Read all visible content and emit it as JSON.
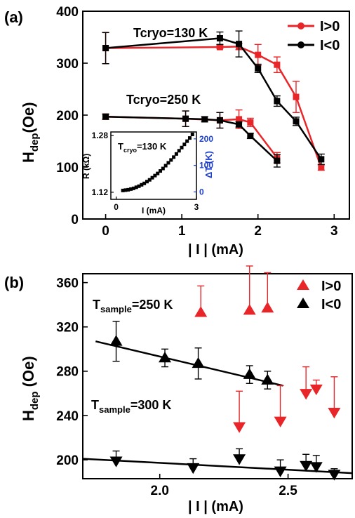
{
  "chart_data": [
    {
      "panel": "(a)",
      "type": "line",
      "xlabel": "| I | (mA)",
      "ylabel": "H_dep (Oe)",
      "xlim": [
        -0.3,
        3.2
      ],
      "ylim": [
        0,
        400
      ],
      "xticks": [
        0,
        1,
        2,
        3
      ],
      "yticks": [
        0,
        100,
        200,
        300,
        400
      ],
      "legend_position": "top-right",
      "annotations": [
        "Tcryo=130 K",
        "Tcryo=250 K"
      ],
      "series": [
        {
          "name": "I>0",
          "color": "#e8262a",
          "marker": "circle-square",
          "group": "130K",
          "x": [
            0,
            1.5,
            1.75,
            2.0,
            2.25,
            2.5,
            2.83
          ],
          "y": [
            329,
            331,
            332,
            316,
            297,
            235,
            99
          ],
          "err": [
            30,
            3,
            6,
            20,
            15,
            30,
            5
          ]
        },
        {
          "name": "I<0",
          "color": "#000000",
          "marker": "circle-square",
          "group": "130K",
          "x": [
            0,
            1.5,
            1.75,
            2.0,
            2.25,
            2.5,
            2.83
          ],
          "y": [
            329,
            348,
            337,
            290,
            227,
            188,
            115
          ],
          "err": [
            30,
            12,
            25,
            8,
            10,
            8,
            10
          ]
        },
        {
          "name": "I>0",
          "color": "#e8262a",
          "marker": "circle-square",
          "group": "250K",
          "x": [
            0,
            1.05,
            1.5,
            1.75,
            1.9,
            2.25
          ],
          "y": [
            197,
            193,
            190,
            192,
            186,
            118
          ],
          "err": [
            5,
            15,
            15,
            18,
            8,
            10
          ]
        },
        {
          "name": "I<0",
          "color": "#000000",
          "marker": "circle-square",
          "group": "250K",
          "x": [
            0,
            1.05,
            1.3,
            1.5,
            1.75,
            1.9,
            2.25
          ],
          "y": [
            197,
            193,
            192,
            190,
            182,
            160,
            112
          ],
          "err": [
            5,
            15,
            5,
            15,
            5,
            5,
            12
          ]
        }
      ],
      "inset": {
        "annotation": "Tcryo=130 K",
        "xlabel": "I (mA)",
        "ylabel_left": "R (kΩ)",
        "ylabel_right": "ΔT (K)",
        "xlim": [
          -0.2,
          3.0
        ],
        "ylim_left": [
          1.1,
          1.29
        ],
        "ylim_right": [
          -28,
          226
        ],
        "xticks": [
          0,
          3
        ],
        "yticks_left": [
          1.12,
          1.28
        ],
        "yticks_right": [
          0,
          100,
          200
        ],
        "right_axis_color": "#1c3fd0",
        "x": [
          0.25,
          0.35,
          0.45,
          0.55,
          0.65,
          0.75,
          0.85,
          0.95,
          1.05,
          1.15,
          1.25,
          1.35,
          1.45,
          1.55,
          1.65,
          1.75,
          1.85,
          1.95,
          2.05,
          2.15,
          2.25,
          2.35,
          2.45,
          2.55,
          2.65,
          2.75,
          2.85
        ],
        "y": [
          1.125,
          1.126,
          1.127,
          1.129,
          1.131,
          1.134,
          1.137,
          1.141,
          1.145,
          1.15,
          1.155,
          1.161,
          1.167,
          1.173,
          1.18,
          1.187,
          1.195,
          1.203,
          1.211,
          1.219,
          1.228,
          1.237,
          1.246,
          1.255,
          1.264,
          1.273,
          1.283
        ]
      }
    },
    {
      "panel": "(b)",
      "type": "scatter",
      "xlabel": "| I | (mA)",
      "ylabel": "H_dep (Oe)",
      "xlim": [
        1.7,
        2.75
      ],
      "ylim": [
        183,
        368
      ],
      "xticks": [
        2.0,
        2.5
      ],
      "yticks": [
        200,
        240,
        280,
        320,
        360
      ],
      "legend_position": "top-right",
      "annotations": [
        "Tsample=250 K",
        "Tsample=300 K"
      ],
      "series": [
        {
          "name": "I>0",
          "color": "#e8262a",
          "group": "250K",
          "marker": "triangle-up",
          "x": [
            2.16,
            2.35,
            2.42
          ],
          "y": [
            333,
            335,
            337
          ],
          "err": [
            24,
            40,
            32
          ],
          "errdir": "up"
        },
        {
          "name": "I<0",
          "color": "#000000",
          "group": "250K",
          "marker": "triangle-up",
          "x": [
            1.83,
            2.02,
            2.15,
            2.35,
            2.42
          ],
          "y": [
            307,
            292,
            287,
            277,
            272
          ],
          "err": [
            18,
            8,
            14,
            8,
            8
          ],
          "errdir": "both"
        },
        {
          "name": "I>0",
          "color": "#e8262a",
          "group": "300K",
          "marker": "triangle-down",
          "x": [
            2.31,
            2.47,
            2.57,
            2.61,
            2.68
          ],
          "y": [
            230,
            235,
            260,
            264,
            243
          ],
          "err": [
            32,
            32,
            24,
            8,
            32
          ],
          "errdir": "up"
        },
        {
          "name": "I<0",
          "color": "#000000",
          "group": "300K",
          "marker": "triangle-down",
          "x": [
            1.83,
            2.13,
            2.31,
            2.47,
            2.57,
            2.61,
            2.68
          ],
          "y": [
            199,
            193,
            201,
            190,
            195,
            194,
            187
          ],
          "err": [
            9,
            8,
            9,
            10,
            10,
            10,
            5
          ],
          "errdir": "up"
        }
      ],
      "fit_lines": [
        {
          "group": "250K",
          "x": [
            1.75,
            2.48
          ],
          "y": [
            307,
            267
          ]
        },
        {
          "group": "300K",
          "x": [
            1.7,
            2.75
          ],
          "y": [
            201,
            188
          ]
        }
      ]
    }
  ]
}
